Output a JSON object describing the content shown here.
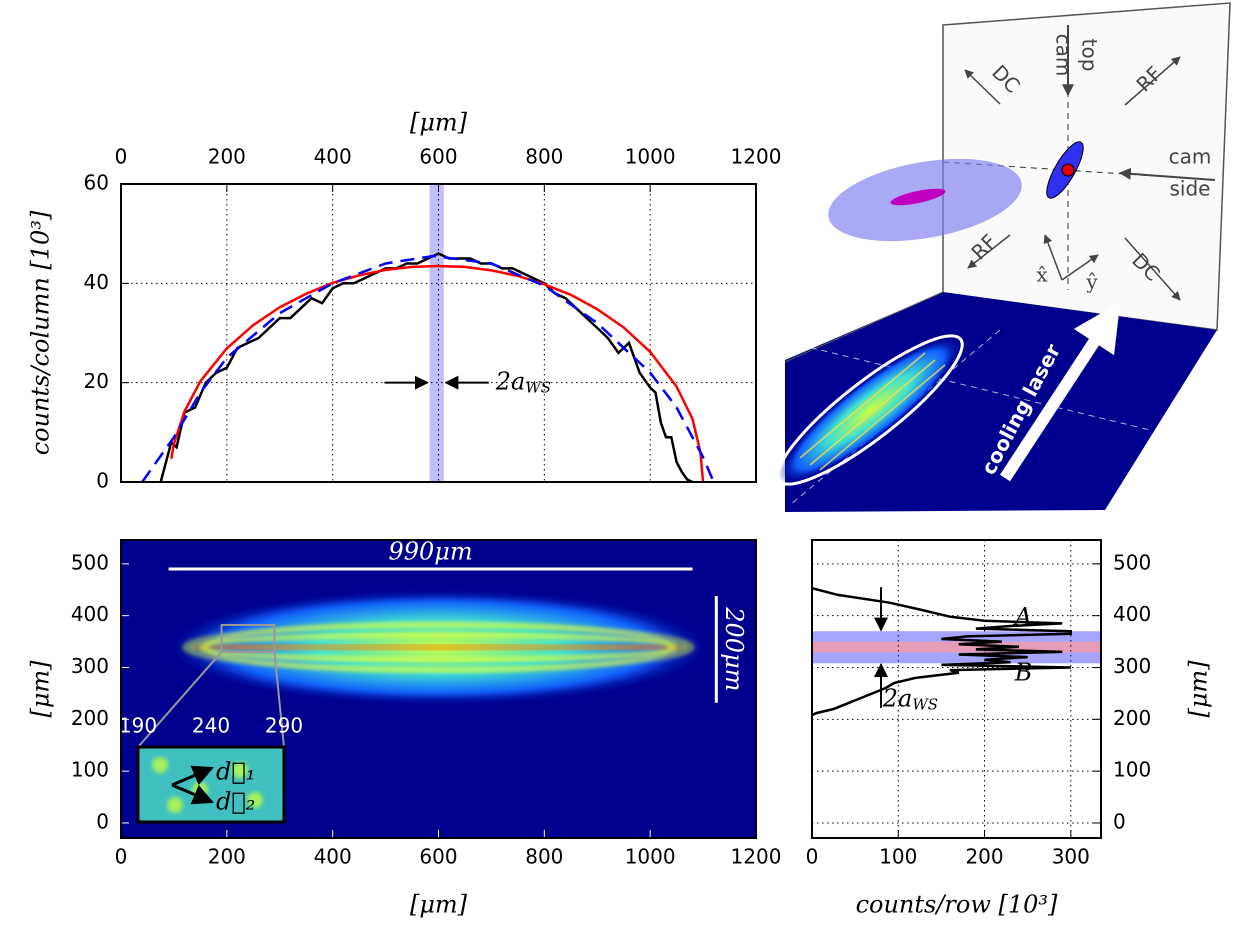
{
  "chart_data": [
    {
      "type": "line",
      "xlabel": "[μm]",
      "ylabel": "counts/column [10³]",
      "xaxis_position": "top",
      "xlim": [
        0,
        1200
      ],
      "xticks": [
        0,
        200,
        400,
        600,
        800,
        1000,
        1200
      ],
      "ylim": [
        0,
        60
      ],
      "yticks": [
        0,
        20,
        40,
        60
      ],
      "grid": true,
      "series": [
        {
          "color": "#000000",
          "style": "solid",
          "x": [
            75,
            85,
            95,
            105,
            120,
            140,
            160,
            180,
            200,
            220,
            240,
            260,
            280,
            300,
            320,
            340,
            360,
            380,
            400,
            420,
            440,
            460,
            480,
            500,
            520,
            540,
            560,
            580,
            600,
            620,
            640,
            660,
            680,
            700,
            720,
            740,
            760,
            780,
            800,
            820,
            840,
            860,
            880,
            900,
            920,
            940,
            960,
            980,
            1000,
            1010,
            1020,
            1030,
            1040,
            1050,
            1060,
            1070,
            1080
          ],
          "values": [
            0,
            4,
            8,
            7,
            14,
            15,
            20,
            22,
            23,
            27,
            28,
            29,
            31,
            33,
            33,
            35,
            37,
            36,
            39,
            40,
            40,
            41,
            42,
            43,
            43,
            44,
            44,
            45,
            46,
            45,
            45,
            45,
            44,
            44,
            43,
            43,
            42,
            41,
            40,
            38,
            37,
            35,
            33,
            31,
            29,
            26,
            28,
            22,
            19,
            18,
            12,
            9,
            9,
            4,
            2,
            0.5,
            0
          ]
        },
        {
          "color": "#ff0000",
          "style": "solid",
          "x": [
            95,
            100,
            120,
            150,
            200,
            250,
            300,
            350,
            400,
            450,
            500,
            550,
            597,
            650,
            700,
            750,
            800,
            850,
            900,
            950,
            1000,
            1050,
            1080,
            1095,
            1100
          ],
          "values": [
            4.7,
            7.7,
            14.2,
            20.3,
            26.9,
            31.6,
            35.2,
            37.9,
            40.1,
            41.6,
            42.7,
            43.3,
            43.5,
            43.3,
            42.6,
            41.5,
            39.8,
            37.7,
            34.8,
            31.1,
            26.2,
            19.2,
            12.7,
            6,
            0
          ]
        },
        {
          "color": "#0000ff",
          "style": "dashed",
          "x": [
            40,
            80,
            100,
            150,
            200,
            300,
            400,
            500,
            590,
            700,
            800,
            900,
            1000,
            1050,
            1100,
            1120
          ],
          "values": [
            0,
            6,
            9,
            18,
            25,
            34,
            40,
            44,
            45.5,
            44,
            39.5,
            32,
            22,
            15,
            5,
            0
          ]
        }
      ],
      "band": {
        "x": [
          583,
          610
        ],
        "color": "#7f7fff"
      },
      "annotation": {
        "text": "2a",
        "subscript": "WS"
      }
    },
    {
      "type": "diagram",
      "labels": [
        "cam",
        "top",
        "cam",
        "side",
        "RF",
        "RF",
        "DC",
        "DC",
        "cooling laser",
        "x̂",
        "ŷ"
      ]
    },
    {
      "type": "heatmap",
      "xlabel": "[μm]",
      "ylabel": "[μm]",
      "xlim": [
        0,
        1200
      ],
      "xticks": [
        0,
        200,
        400,
        600,
        800,
        1000,
        1200
      ],
      "ylim": [
        -29,
        546
      ],
      "yticks": [
        0,
        100,
        200,
        300,
        400,
        500
      ],
      "scale_bars": [
        {
          "label": "990μm",
          "x": [
            90,
            1080
          ],
          "y": 490
        },
        {
          "label": "200μm",
          "x": 1125,
          "y": [
            232,
            438
          ]
        }
      ],
      "inset": {
        "xticks": [
          190,
          240,
          290
        ],
        "labels": [
          "d⃗₁",
          "d⃗₂"
        ]
      }
    },
    {
      "type": "profile",
      "xlabel": "counts/row [10³]",
      "ylabel": "[μm]",
      "yaxis_position": "right",
      "xlim": [
        0,
        335
      ],
      "xticks": [
        0,
        100,
        200,
        300
      ],
      "ylim": [
        -29,
        546
      ],
      "yticks": [
        0,
        100,
        200,
        300,
        400,
        500
      ],
      "grid": true,
      "series": [
        {
          "color": "#000000",
          "x": [
            0,
            30,
            90,
            130,
            160,
            200,
            290,
            230,
            190,
            300,
            300,
            180,
            150,
            220,
            170,
            240,
            190,
            290,
            170,
            250,
            200,
            230,
            150,
            300,
            160,
            170,
            120,
            95,
            85,
            70,
            55,
            40,
            25,
            5,
            0
          ],
          "values": [
            453,
            440,
            425,
            410,
            398,
            390,
            385,
            380,
            375,
            370,
            365,
            360,
            355,
            350,
            345,
            340,
            335,
            330,
            325,
            320,
            315,
            310,
            305,
            300,
            295,
            290,
            280,
            270,
            260,
            250,
            240,
            230,
            220,
            212,
            208
          ]
        }
      ],
      "bands": [
        {
          "y": [
            309,
            369
          ],
          "color": "#8080ff"
        },
        {
          "y": [
            330,
            349
          ],
          "color": "#ff9999"
        }
      ],
      "annotations": [
        "A",
        "B",
        {
          "text": "2a",
          "subscript": "WS"
        }
      ]
    }
  ]
}
